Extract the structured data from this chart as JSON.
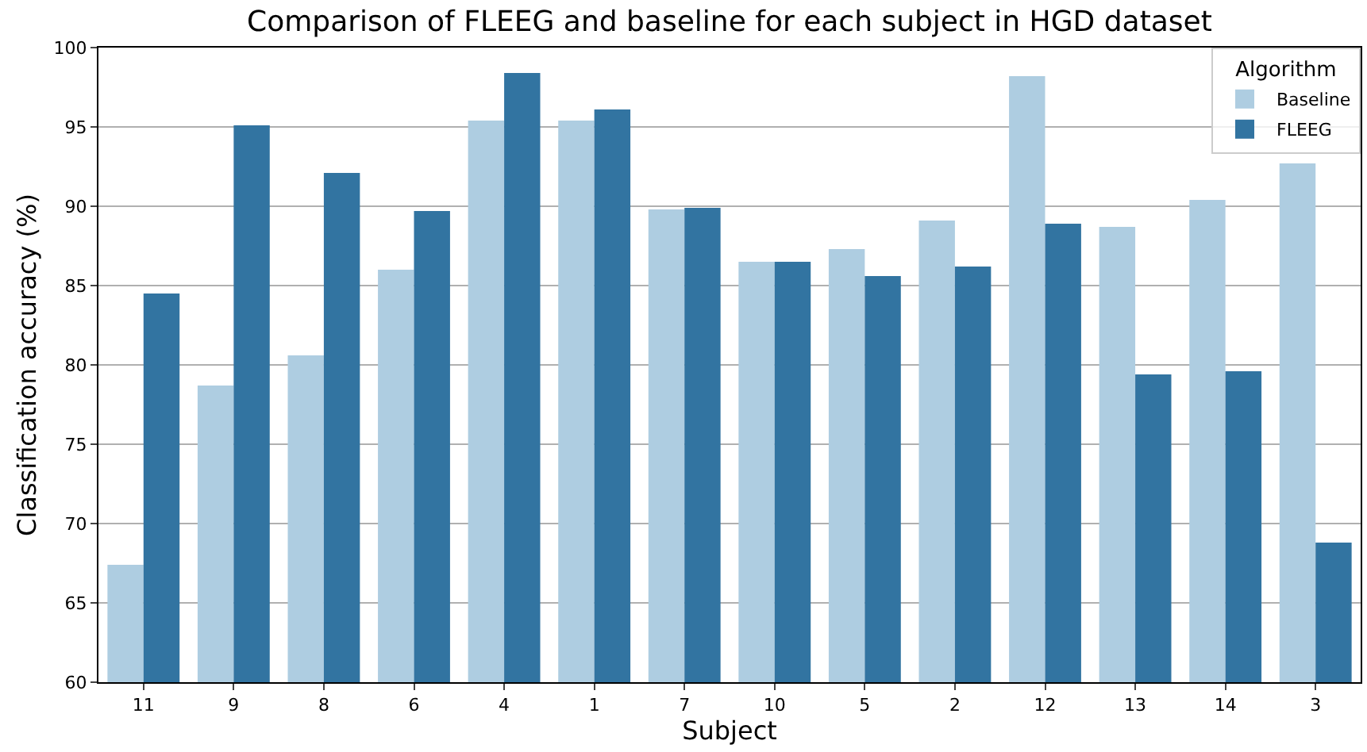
{
  "chart_data": {
    "type": "bar",
    "title": "Comparison of FLEEG and baseline for each subject in HGD dataset",
    "xlabel": "Subject",
    "ylabel": "Classification accuracy (%)",
    "legend_title": "Algorithm",
    "categories": [
      "11",
      "9",
      "8",
      "6",
      "4",
      "1",
      "7",
      "10",
      "5",
      "2",
      "12",
      "13",
      "14",
      "3"
    ],
    "series": [
      {
        "name": "Baseline",
        "color": "#aecde1",
        "values": [
          67.4,
          78.7,
          80.6,
          86.0,
          95.4,
          95.4,
          89.8,
          86.5,
          87.3,
          89.1,
          98.2,
          88.7,
          90.4,
          92.7
        ]
      },
      {
        "name": "FLEEG",
        "color": "#3274a1",
        "values": [
          84.5,
          95.1,
          92.1,
          89.7,
          98.4,
          96.1,
          89.9,
          86.5,
          85.6,
          86.2,
          88.9,
          79.4,
          79.6,
          68.8
        ]
      }
    ],
    "ylim": [
      60,
      100
    ],
    "yticks": [
      60,
      65,
      70,
      75,
      80,
      85,
      90,
      95,
      100
    ],
    "grid": "y",
    "legend": "top right"
  }
}
